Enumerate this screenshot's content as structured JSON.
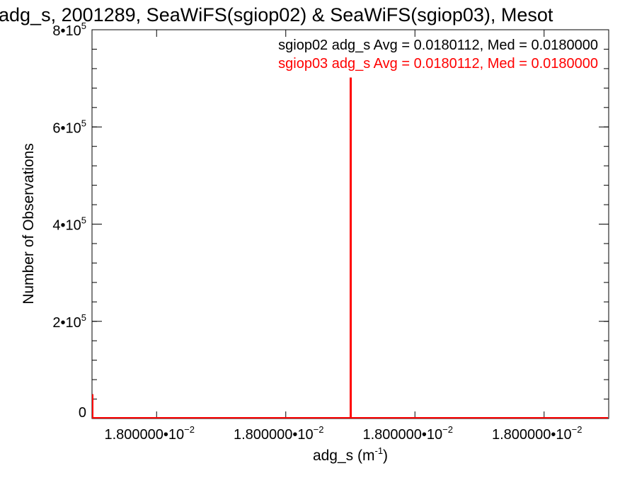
{
  "chart_data": {
    "type": "line",
    "title": "adg_s, 2001289, SeaWiFS(sgiop02) & SeaWiFS(sgiop03), Mesot",
    "xlabel": "adg_s (m",
    "xlabel_sup": "-1",
    "xlabel_close": ")",
    "ylabel": "Number of Observations",
    "ylim": [
      0,
      800000
    ],
    "y_ticks": [
      {
        "value": 0,
        "mant": "0",
        "exp": ""
      },
      {
        "value": 200000,
        "mant": "2•10",
        "exp": "5"
      },
      {
        "value": 400000,
        "mant": "4•10",
        "exp": "5"
      },
      {
        "value": 600000,
        "mant": "6•10",
        "exp": "5"
      },
      {
        "value": 800000,
        "mant": "8•10",
        "exp": "5"
      }
    ],
    "x_tick_labels": [
      {
        "mant": "1.800000•10",
        "exp": "−2"
      },
      {
        "mant": "1.800000•10",
        "exp": "−2"
      },
      {
        "mant": "1.800000•10",
        "exp": "−2"
      },
      {
        "mant": "1.800000•10",
        "exp": "−2"
      }
    ],
    "series": [
      {
        "name": "sgiop02 adg_s",
        "color": "#000000",
        "legend_text": "sgiop02 adg_s Avg = 0.0180112, Med = 0.0180000",
        "spike_value": 700000,
        "left_edge_value": 50000
      },
      {
        "name": "sgiop03 adg_s",
        "color": "#ff0000",
        "legend_text": "sgiop03 adg_s Avg = 0.0180112, Med = 0.0180000",
        "spike_value": 700000,
        "left_edge_value": 50000
      }
    ],
    "legend_position": "top-right",
    "grid": false
  }
}
